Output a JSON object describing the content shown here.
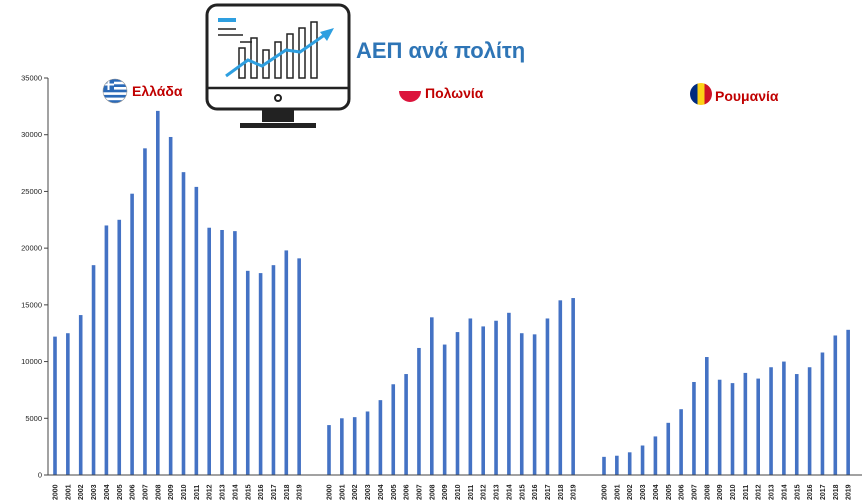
{
  "title": "ΑΕΠ ανά πολίτη",
  "colors": {
    "bar": "#4472c4",
    "title": "#2e75b6",
    "country_label": "#c00000",
    "axis": "#444444"
  },
  "icons": {
    "title_icon": "monitor-chart-icon",
    "flags": [
      "greece-flag-icon",
      "poland-flag-icon",
      "romania-flag-icon"
    ]
  },
  "chart_data": {
    "type": "bar",
    "title": "ΑΕΠ ανά πολίτη",
    "xlabel": "",
    "ylabel": "",
    "ylim": [
      0,
      35000
    ],
    "yticks": [
      0,
      5000,
      10000,
      15000,
      20000,
      25000,
      30000,
      35000
    ],
    "grid": false,
    "categories": [
      "2000",
      "2001",
      "2002",
      "2003",
      "2004",
      "2005",
      "2006",
      "2007",
      "2008",
      "2009",
      "2010",
      "2011",
      "2012",
      "2013",
      "2014",
      "2015",
      "2016",
      "2017",
      "2018",
      "2019"
    ],
    "series": [
      {
        "name": "Ελλάδα",
        "values": [
          12200,
          12500,
          14100,
          18500,
          22000,
          22500,
          24800,
          28800,
          32100,
          29800,
          26700,
          25400,
          21800,
          21600,
          21500,
          18000,
          17800,
          18500,
          19800,
          19100
        ]
      },
      {
        "name": "Πολωνία",
        "values": [
          4400,
          5000,
          5100,
          5600,
          6600,
          8000,
          8900,
          11200,
          13900,
          11500,
          12600,
          13800,
          13100,
          13600,
          14300,
          12500,
          12400,
          13800,
          15400,
          15600
        ]
      },
      {
        "name": "Ρουμανία",
        "values": [
          1600,
          1700,
          2000,
          2600,
          3400,
          4600,
          5800,
          8200,
          10400,
          8400,
          8100,
          9000,
          8500,
          9500,
          10000,
          8900,
          9500,
          10800,
          12300,
          12800
        ]
      }
    ]
  }
}
